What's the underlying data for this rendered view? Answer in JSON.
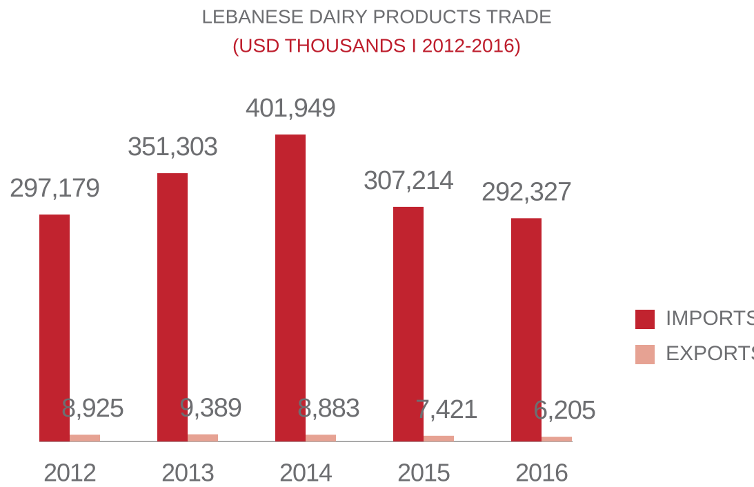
{
  "chart_data": {
    "type": "bar",
    "title": "LEBANESE DAIRY PRODUCTS TRADE",
    "subtitle": "(USD THOUSANDS I 2012-2016)",
    "categories": [
      "2012",
      "2013",
      "2014",
      "2015",
      "2016"
    ],
    "series": [
      {
        "name": "IMPORTS",
        "color": "#c1232f",
        "values": [
          297179,
          351303,
          401949,
          307214,
          292327
        ],
        "value_labels": [
          "297,179",
          "351,303",
          "401,949",
          "307,214",
          "292,327"
        ]
      },
      {
        "name": "EXPORTS",
        "color": "#e6a293",
        "values": [
          8925,
          9389,
          8883,
          7421,
          6205
        ],
        "value_labels": [
          "8,925",
          "9,389",
          "8,883",
          "7,421",
          "6,205"
        ]
      }
    ],
    "legend": "right"
  }
}
